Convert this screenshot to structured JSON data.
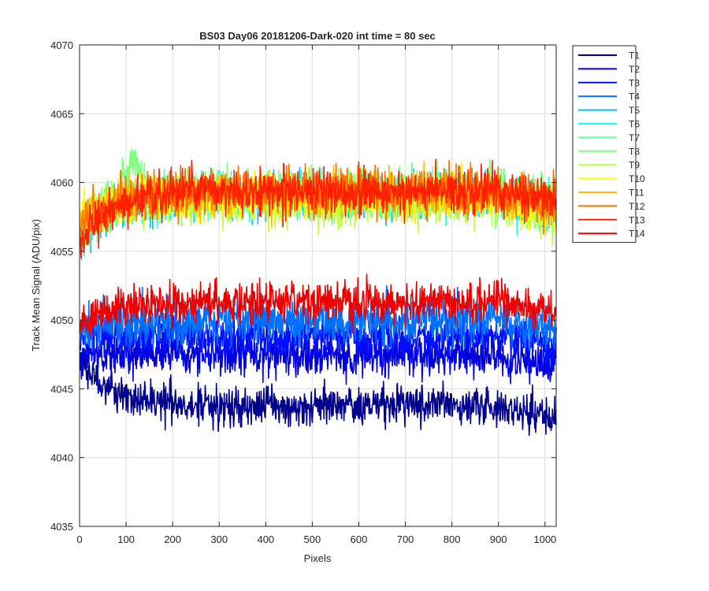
{
  "chart_data": {
    "type": "line",
    "title": "BS03 Day06 20181206-Dark-020 int time = 80 sec",
    "xlabel": "Pixels",
    "ylabel": "Track Mean Signal (ADU/pix)",
    "xlim": [
      0,
      1024
    ],
    "ylim": [
      4035,
      4070
    ],
    "x_ticks": [
      0,
      100,
      200,
      300,
      400,
      500,
      600,
      700,
      800,
      900,
      1000
    ],
    "y_ticks": [
      4035,
      4040,
      4045,
      4050,
      4055,
      4060,
      4065,
      4070
    ],
    "grid": true,
    "legend_position": "outside-top-right",
    "x_points": 1024,
    "series": [
      {
        "name": "T1",
        "color": "#00008f",
        "mean": 4043.8,
        "start": 4047.0,
        "noise": 1.2
      },
      {
        "name": "T2",
        "color": "#0000df",
        "mean": 4047.5,
        "start": 4047.5,
        "noise": 1.3
      },
      {
        "name": "T3",
        "color": "#0010ff",
        "mean": 4048.8,
        "start": 4048.5,
        "noise": 1.3
      },
      {
        "name": "T4",
        "color": "#0070ff",
        "mean": 4050.0,
        "start": 4049.5,
        "noise": 1.5
      },
      {
        "name": "T5",
        "color": "#00bfff",
        "mean": 4059.0,
        "start": 4056.0,
        "noise": 1.3
      },
      {
        "name": "T6",
        "color": "#10ffef",
        "mean": 4059.0,
        "start": 4056.5,
        "noise": 1.3
      },
      {
        "name": "T7",
        "color": "#60ffa0",
        "mean": 4059.2,
        "start": 4056.5,
        "noise": 1.3
      },
      {
        "name": "T8",
        "color": "#80ff80",
        "mean": 4059.3,
        "start": 4057.0,
        "noise": 1.4,
        "bump": {
          "x0": 80,
          "x1": 150,
          "height": 3.0
        }
      },
      {
        "name": "T9",
        "color": "#bfff40",
        "mean": 4058.5,
        "start": 4057.0,
        "noise": 1.4
      },
      {
        "name": "T10",
        "color": "#ffff00",
        "mean": 4059.0,
        "start": 4057.5,
        "noise": 1.3
      },
      {
        "name": "T11",
        "color": "#ffbf00",
        "mean": 4059.2,
        "start": 4057.0,
        "noise": 1.3
      },
      {
        "name": "T12",
        "color": "#ff7000",
        "mean": 4059.3,
        "start": 4056.5,
        "noise": 1.4
      },
      {
        "name": "T13",
        "color": "#ff2000",
        "mean": 4059.4,
        "start": 4055.5,
        "noise": 1.3
      },
      {
        "name": "T14",
        "color": "#ef0000",
        "mean": 4051.3,
        "start": 4049.5,
        "noise": 1.2
      }
    ]
  }
}
